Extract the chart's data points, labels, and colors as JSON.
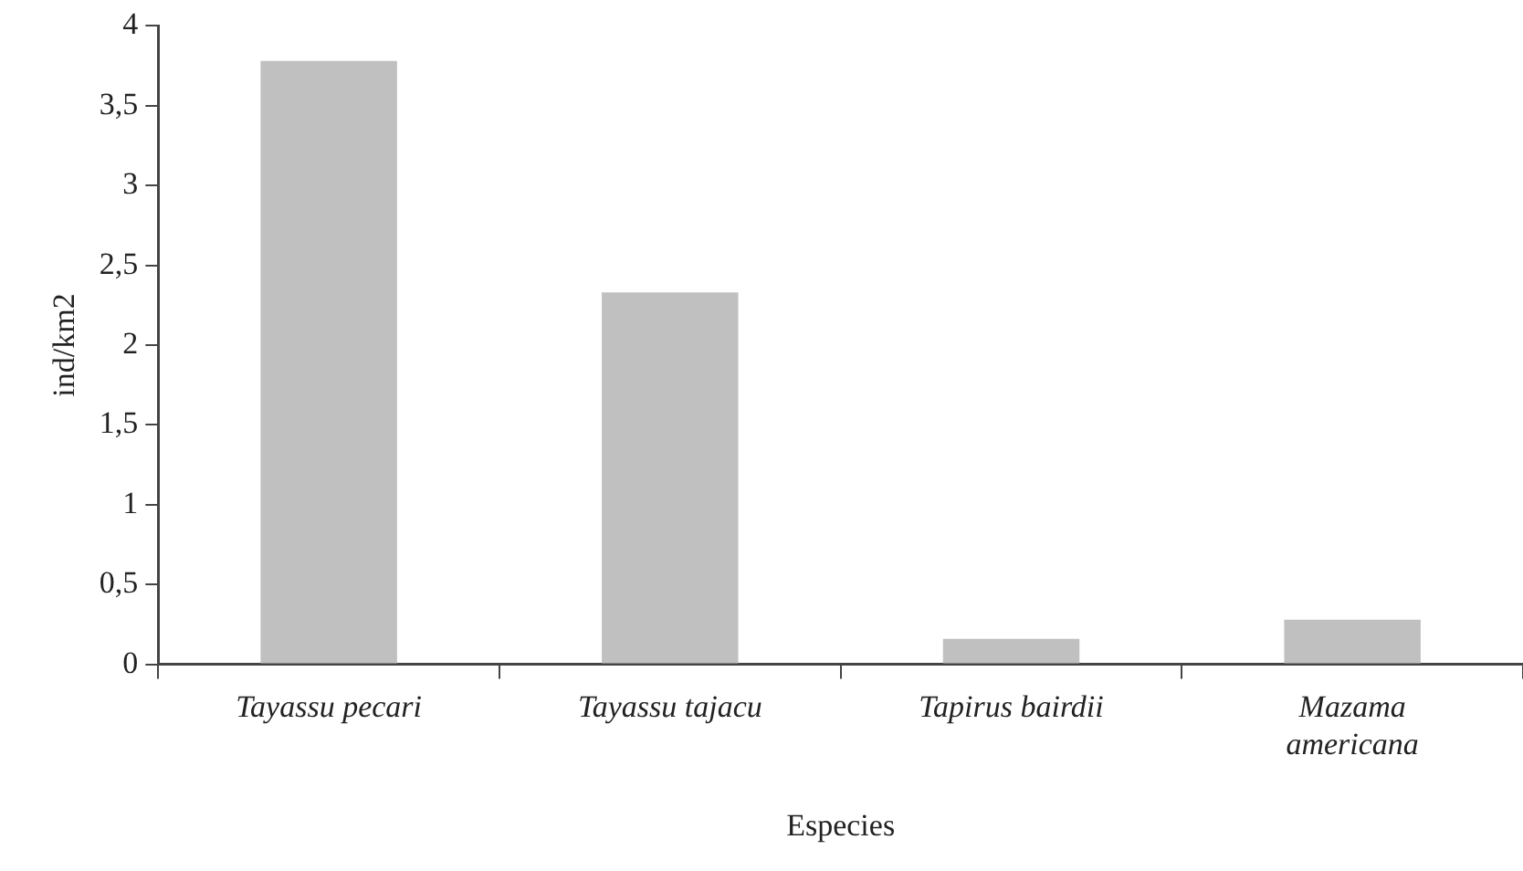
{
  "chart_data": {
    "type": "bar",
    "xlabel": "Especies",
    "ylabel": "ind/km2",
    "categories": [
      "Tayassu pecari",
      "Tayassu tajacu",
      "Tapirus bairdii",
      "Mazama americana"
    ],
    "values": [
      3.78,
      2.33,
      0.16,
      0.28
    ],
    "color": "#c0c0c0",
    "ylim": [
      0,
      4
    ],
    "yticks": [
      0,
      {
        "value": 0.5,
        "label": "0,5"
      },
      1,
      {
        "value": 1.5,
        "label": "1,5"
      },
      2,
      {
        "value": 2.5,
        "label": "2,5"
      },
      3,
      {
        "value": 3.5,
        "label": "3,5"
      },
      4
    ],
    "grid": false,
    "legend": false
  }
}
